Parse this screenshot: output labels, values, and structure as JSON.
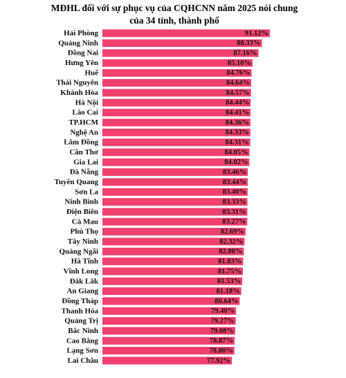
{
  "chart_data": {
    "type": "bar",
    "orientation": "horizontal",
    "title": [
      "MĐHL đối với sự phục vụ của CQHCNN năm 2025 nói chung",
      "của 34 tỉnh, thành phố"
    ],
    "categories": [
      "Hải Phòng",
      "Quảng Ninh",
      "Đồng Nai",
      "Hưng Yên",
      "Huế",
      "Thái Nguyên",
      "Khánh Hòa",
      "Hà Nội",
      "Lào Cai",
      "TP.HCM",
      "Nghệ An",
      "Lâm Đồng",
      "Cần Thơ",
      "Gia Lai",
      "Đà Nẵng",
      "Tuyên Quang",
      "Sơn La",
      "Ninh Bình",
      "Điện Biên",
      "Cà Mau",
      "Phú Thọ",
      "Tây Ninh",
      "Quảng Ngãi",
      "Hà Tĩnh",
      "Vĩnh Long",
      "Đắk Lắk",
      "An Giang",
      "Đồng Tháp",
      "Thanh Hóa",
      "Quảng Trị",
      "Bắc Ninh",
      "Cao Bằng",
      "Lạng Sơn",
      "Lai Châu"
    ],
    "values": [
      91.12,
      88.33,
      87.16,
      85.1,
      84.76,
      84.64,
      84.57,
      84.44,
      84.41,
      84.36,
      84.33,
      84.31,
      84.05,
      84.02,
      83.46,
      83.44,
      83.4,
      83.33,
      83.31,
      83.27,
      82.69,
      82.32,
      82.08,
      81.83,
      81.75,
      81.53,
      81.18,
      80.64,
      79.4,
      79.27,
      79.08,
      78.87,
      78.8,
      77.92
    ],
    "value_labels": [
      "91.12%",
      "88.33%",
      "87.16%",
      "85.10%",
      "84.76%",
      "84.64%",
      "84.57%",
      "84.44%",
      "84.41%",
      "84.36%",
      "84.33%",
      "84.31%",
      "84.05%",
      "84.02%",
      "83.46%",
      "83.44%",
      "83.40%",
      "83.33%",
      "83.31%",
      "83.27%",
      "82.69%",
      "82.32%",
      "82.08%",
      "81.83%",
      "81.75%",
      "81.53%",
      "81.18%",
      "80.64%",
      "79.40%",
      "79.27%",
      "79.08%",
      "78.87%",
      "78.80%",
      "77.92%"
    ],
    "color": "#f0406f",
    "xlim": [
      33,
      100
    ]
  }
}
